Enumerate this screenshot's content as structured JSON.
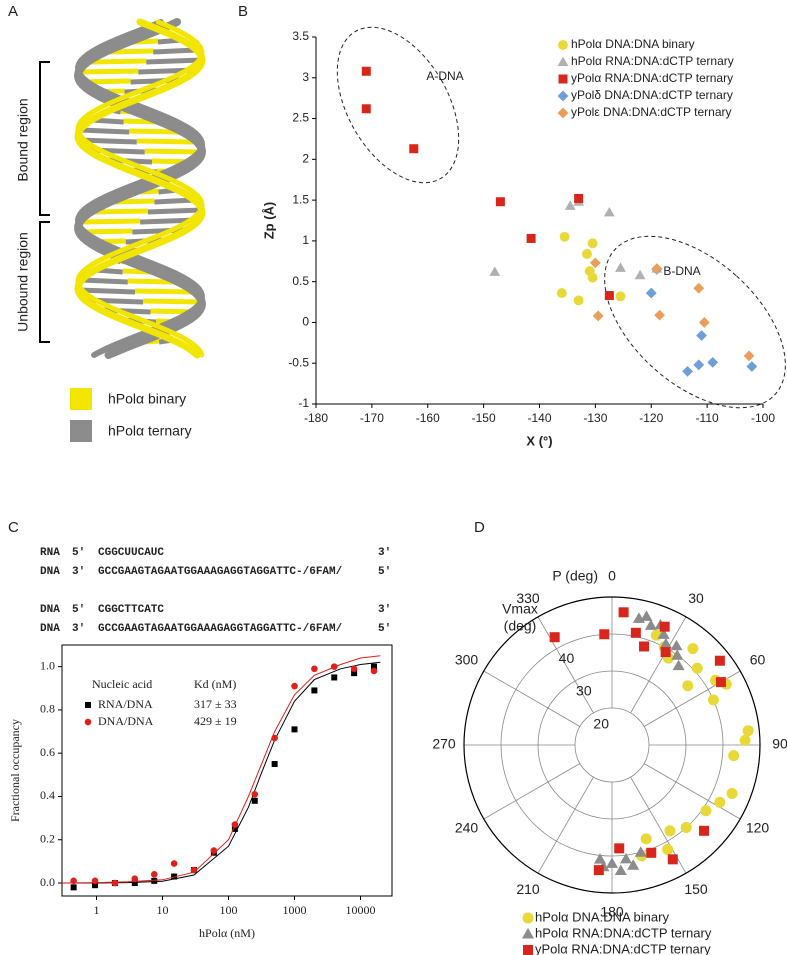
{
  "panel_labels": [
    "A",
    "B",
    "C",
    "D"
  ],
  "structure": {
    "regions": [
      "Bound region",
      "Unbound region"
    ],
    "legend": [
      {
        "name": "hPolα binary",
        "color": "#f2e600"
      },
      {
        "name": "hPolα ternary",
        "color": "#8c8c8c"
      }
    ]
  },
  "sequences": [
    [
      "RNA",
      "5′",
      "CGGCUUCAUC",
      "3′"
    ],
    [
      "DNA",
      "3′",
      "GCCGAAGTAGAATGGAAAGAGGTAGGATTC-/6FAM/",
      "5′"
    ],
    [
      "DNA",
      "5′",
      "CGGCTTCATC",
      "3′"
    ],
    [
      "DNA",
      "3′",
      "GCCGAAGTAGAATGGAAAGAGGTAGGATTC-/6FAM/",
      "5′"
    ]
  ],
  "chart_data": [
    {
      "type": "scatter",
      "x_label": "X (°)",
      "y_label": "Zp (Å)",
      "xlim": [
        -180,
        -100
      ],
      "ylim": [
        -1,
        3.5
      ],
      "xticks": [
        -180,
        -170,
        -160,
        -150,
        -140,
        -130,
        -120,
        -110,
        -100
      ],
      "yticks": [
        -1,
        -0.5,
        0,
        0.5,
        1,
        1.5,
        2,
        2.5,
        3,
        3.5
      ],
      "legend": "upper right",
      "annotations": [
        "A-DNA",
        "B-DNA"
      ],
      "series": [
        {
          "name": "hPolα DNA:DNA binary",
          "color": "#e8d838",
          "marker": "circle",
          "x": [
            -135.5,
            -130.5,
            -131.5,
            -131,
            -136,
            -133,
            -125.5,
            -130.5
          ],
          "values": [
            1.05,
            0.97,
            0.84,
            0.63,
            0.36,
            0.27,
            0.32,
            0.55
          ]
        },
        {
          "name": "hPolα RNA:DNA:dCTP ternary",
          "color": "#b0b0b0",
          "marker": "triangle",
          "x": [
            -148,
            -134.5,
            -133,
            -127.5,
            -125.5,
            -122,
            -119
          ],
          "values": [
            0.62,
            1.43,
            1.48,
            1.35,
            0.67,
            0.58,
            0.66
          ]
        },
        {
          "name": "yPolα RNA:DNA:dCTP ternary",
          "color": "#d9261c",
          "marker": "square",
          "x": [
            -171,
            -171,
            -162.5,
            -147,
            -141.5,
            -133,
            -127.5
          ],
          "values": [
            3.08,
            2.62,
            2.13,
            1.48,
            1.03,
            1.52,
            0.33
          ]
        },
        {
          "name": "yPolδ DNA:DNA:dCTP ternary",
          "color": "#6f9fd8",
          "marker": "diamond",
          "x": [
            -120,
            -119,
            -111,
            -109,
            -111.5,
            -113.5,
            -102
          ],
          "values": [
            0.36,
            0.65,
            -0.16,
            -0.49,
            -0.52,
            -0.6,
            -0.54
          ]
        },
        {
          "name": "yPolε DNA:DNA:dCTP ternary",
          "color": "#eb9e5a",
          "marker": "diamond",
          "x": [
            -130,
            -129.5,
            -119,
            -118.5,
            -111.5,
            -110.5,
            -102.5
          ],
          "values": [
            0.73,
            0.08,
            0.66,
            0.09,
            0.42,
            0,
            -0.41
          ]
        }
      ]
    },
    {
      "type": "scatter",
      "xscale": "log",
      "x_label": "hPolα (nM)",
      "y_label": "Fractional occupancy",
      "xlim": [
        0.3,
        30000
      ],
      "ylim": [
        -0.06,
        1.1
      ],
      "xticks": [
        1,
        10,
        100,
        1000,
        10000
      ],
      "yticks": [
        {
          "value": 0,
          "label": "0.0"
        },
        {
          "value": 0.2,
          "label": "0.2"
        },
        {
          "value": 0.4,
          "label": "0.4"
        },
        {
          "value": 0.6,
          "label": "0.6"
        },
        {
          "value": 0.8,
          "label": "0.8"
        },
        {
          "value": 1,
          "label": "1.0"
        }
      ],
      "legend": "upper left",
      "legend_title": [
        "Nucleic acid",
        "Kd (nM)"
      ],
      "x": [
        0.45,
        0.95,
        1.9,
        3.8,
        7.5,
        15,
        30,
        60,
        125,
        250,
        500,
        1000,
        2000,
        4000,
        8000,
        16000
      ],
      "fit_x": [
        0.3,
        1,
        3,
        10,
        30,
        100,
        200,
        317,
        500,
        1000,
        2000,
        5000,
        10000,
        20000
      ],
      "series": [
        {
          "name": "RNA/DNA",
          "kd": "317 ± 33",
          "color": "#000000",
          "marker": "square",
          "values": [
            -0.02,
            -0.01,
            0,
            0,
            0.01,
            0.03,
            0.06,
            0.14,
            0.25,
            0.38,
            0.55,
            0.71,
            0.89,
            0.95,
            0.97,
            1.0
          ],
          "fit_values": [
            0,
            0,
            0.002,
            0.008,
            0.037,
            0.17,
            0.35,
            0.51,
            0.66,
            0.84,
            0.94,
            0.99,
            1.01,
            1.02
          ]
        },
        {
          "name": "DNA/DNA",
          "kd": "429 ± 19",
          "color": "#e0201a",
          "marker": "circle",
          "values": [
            0.01,
            0.01,
            0,
            0.02,
            0.04,
            0.09,
            0.06,
            0.15,
            0.27,
            0.41,
            0.67,
            0.91,
            0.99,
            1.0,
            0.99,
            0.98
          ],
          "fit_values": [
            0,
            0.002,
            0.006,
            0.015,
            0.05,
            0.2,
            0.4,
            0.55,
            0.7,
            0.87,
            0.96,
            1.01,
            1.04,
            1.05
          ]
        }
      ]
    },
    {
      "type": "polar",
      "theta_label": "P (deg)",
      "r_label": [
        "Vmax",
        "(deg)"
      ],
      "rlim": [
        10,
        50
      ],
      "rticks": [
        20,
        30,
        40
      ],
      "thetaticks": [
        0,
        30,
        60,
        90,
        120,
        150,
        180,
        210,
        240,
        270,
        300,
        330
      ],
      "legend": "below",
      "series": [
        {
          "name": "hPolα DNA:DNA binary",
          "color": "#e8d838",
          "marker": "circle",
          "theta": [
            22,
            28,
            33,
            40,
            48,
            52,
            58,
            62,
            66,
            84,
            88,
            95,
            112,
            118,
            125,
            138,
            146,
            152,
            160,
            165
          ],
          "values": [
            42,
            40,
            38,
            44,
            41,
            36,
            43,
            45,
            40,
            47,
            46,
            43,
            45,
            43,
            41,
            40,
            38,
            42,
            37,
            41
          ]
        },
        {
          "name": "hPolα RNA:DNA:dCTP ternary",
          "color": "#8c8c8c",
          "marker": "triangle",
          "theta": [
            12,
            15,
            18,
            22,
            25,
            28,
            33,
            36,
            40,
            165,
            170,
            173,
            176,
            180,
            184,
            186
          ],
          "values": [
            45,
            46,
            44,
            45,
            43,
            41,
            42,
            40,
            38,
            40,
            43,
            41,
            44,
            42,
            43,
            41
          ]
        },
        {
          "name": "yPolα RNA:DNA:dCTP ternary",
          "color": "#d9261c",
          "marker": "square",
          "theta": [
            332,
            356,
            5,
            12,
            18,
            24,
            30,
            52,
            60,
            133,
            152,
            160,
            176,
            186
          ],
          "values": [
            43,
            40,
            46,
            41,
            38,
            45,
            39,
            47,
            44,
            44,
            45,
            41,
            38,
            44
          ]
        }
      ]
    }
  ]
}
